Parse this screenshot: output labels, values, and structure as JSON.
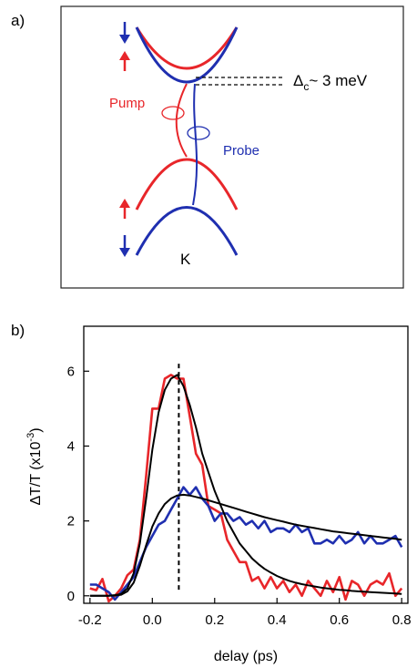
{
  "panel_a": {
    "label": "a)",
    "annotations": {
      "pump": "Pump",
      "probe": "Probe",
      "valley": "K",
      "gap_symbol": "Δ",
      "gap_subscript": "c",
      "gap_value": "~ 3 meV"
    },
    "colors": {
      "red": "#e8262a",
      "blue": "#1f2fb0"
    }
  },
  "chart_data": {
    "type": "line",
    "panel_label": "b)",
    "title": "",
    "xlabel": "delay (ps)",
    "ylabel": "ΔT/T (x10",
    "ylabel_exponent": "-3",
    "ylabel_close": ")",
    "xlim": [
      -0.22,
      0.82
    ],
    "ylim": [
      -0.2,
      7.2
    ],
    "xticks": [
      -0.2,
      0.0,
      0.2,
      0.4,
      0.6,
      0.8
    ],
    "xtick_labels": [
      "-0.2",
      "0.0",
      "0.2",
      "0.4",
      "0.6",
      "0.8"
    ],
    "yticks": [
      0,
      2,
      4,
      6
    ],
    "ytick_labels": [
      "0",
      "2",
      "4",
      "6"
    ],
    "vline_x": 0.085,
    "grid": false,
    "series": [
      {
        "color": "#e8262a",
        "x": [
          -0.2,
          -0.18,
          -0.16,
          -0.14,
          -0.12,
          -0.1,
          -0.08,
          -0.06,
          -0.04,
          -0.02,
          0.0,
          0.02,
          0.04,
          0.06,
          0.08,
          0.1,
          0.12,
          0.14,
          0.16,
          0.18,
          0.2,
          0.22,
          0.24,
          0.26,
          0.28,
          0.3,
          0.32,
          0.34,
          0.36,
          0.38,
          0.4,
          0.42,
          0.44,
          0.46,
          0.48,
          0.5,
          0.52,
          0.54,
          0.56,
          0.58,
          0.6,
          0.62,
          0.64,
          0.66,
          0.68,
          0.7,
          0.72,
          0.74,
          0.76,
          0.78,
          0.8
        ],
        "y": [
          0.2,
          0.15,
          0.45,
          -0.15,
          0.0,
          0.2,
          0.55,
          0.7,
          1.5,
          3.2,
          5.0,
          5.0,
          5.8,
          5.9,
          5.8,
          5.8,
          4.8,
          3.8,
          3.5,
          2.4,
          2.3,
          2.2,
          1.5,
          1.2,
          0.9,
          0.9,
          0.4,
          0.5,
          0.2,
          0.5,
          0.2,
          0.4,
          0.1,
          0.3,
          0.0,
          0.4,
          0.2,
          0.0,
          0.4,
          0.1,
          0.5,
          -0.1,
          0.4,
          0.3,
          0.0,
          0.3,
          0.4,
          0.3,
          0.6,
          0.0,
          0.2
        ]
      },
      {
        "color": "#1f2fb0",
        "x": [
          -0.2,
          -0.18,
          -0.16,
          -0.14,
          -0.12,
          -0.1,
          -0.08,
          -0.06,
          -0.04,
          -0.02,
          0.0,
          0.02,
          0.04,
          0.06,
          0.08,
          0.1,
          0.12,
          0.14,
          0.16,
          0.18,
          0.2,
          0.22,
          0.24,
          0.26,
          0.28,
          0.3,
          0.32,
          0.34,
          0.36,
          0.38,
          0.4,
          0.42,
          0.44,
          0.46,
          0.48,
          0.5,
          0.52,
          0.54,
          0.56,
          0.58,
          0.6,
          0.62,
          0.64,
          0.66,
          0.68,
          0.7,
          0.72,
          0.74,
          0.76,
          0.78,
          0.8
        ],
        "y": [
          0.3,
          0.3,
          0.2,
          0.1,
          -0.1,
          0.1,
          0.3,
          0.5,
          0.9,
          1.3,
          1.6,
          1.9,
          2.0,
          2.3,
          2.6,
          2.9,
          2.7,
          2.9,
          2.6,
          2.4,
          2.0,
          2.2,
          2.2,
          2.0,
          2.1,
          1.9,
          2.0,
          1.8,
          2.0,
          1.7,
          1.8,
          1.8,
          1.7,
          1.9,
          1.7,
          1.8,
          1.4,
          1.4,
          1.5,
          1.4,
          1.6,
          1.4,
          1.5,
          1.7,
          1.4,
          1.6,
          1.4,
          1.4,
          1.5,
          1.6,
          1.3
        ]
      },
      {
        "color": "#000000",
        "x": [
          -0.2,
          -0.18,
          -0.16,
          -0.14,
          -0.12,
          -0.1,
          -0.08,
          -0.06,
          -0.04,
          -0.02,
          0.0,
          0.02,
          0.04,
          0.06,
          0.08,
          0.1,
          0.12,
          0.14,
          0.16,
          0.18,
          0.2,
          0.22,
          0.24,
          0.26,
          0.28,
          0.3,
          0.32,
          0.34,
          0.36,
          0.38,
          0.4,
          0.42,
          0.44,
          0.46,
          0.48,
          0.5,
          0.52,
          0.54,
          0.56,
          0.58,
          0.6,
          0.62,
          0.64,
          0.66,
          0.68,
          0.7,
          0.72,
          0.74,
          0.76,
          0.78,
          0.8
        ],
        "y": [
          0.0,
          0.0,
          0.0,
          0.0,
          0.02,
          0.05,
          0.2,
          0.6,
          1.4,
          2.6,
          3.9,
          4.9,
          5.5,
          5.8,
          5.9,
          5.6,
          5.1,
          4.5,
          3.8,
          3.3,
          2.8,
          2.4,
          2.0,
          1.7,
          1.4,
          1.2,
          1.0,
          0.85,
          0.72,
          0.62,
          0.53,
          0.46,
          0.4,
          0.35,
          0.31,
          0.28,
          0.25,
          0.22,
          0.2,
          0.18,
          0.16,
          0.15,
          0.13,
          0.12,
          0.11,
          0.1,
          0.09,
          0.08,
          0.07,
          0.06,
          0.05
        ]
      },
      {
        "color": "#000000",
        "x": [
          -0.2,
          -0.18,
          -0.16,
          -0.14,
          -0.12,
          -0.1,
          -0.08,
          -0.06,
          -0.04,
          -0.02,
          0.0,
          0.02,
          0.04,
          0.06,
          0.08,
          0.1,
          0.12,
          0.14,
          0.16,
          0.18,
          0.2,
          0.22,
          0.24,
          0.26,
          0.28,
          0.3,
          0.32,
          0.34,
          0.36,
          0.38,
          0.4,
          0.42,
          0.44,
          0.46,
          0.48,
          0.5,
          0.52,
          0.54,
          0.56,
          0.58,
          0.6,
          0.62,
          0.64,
          0.66,
          0.68,
          0.7,
          0.72,
          0.74,
          0.76,
          0.78,
          0.8
        ],
        "y": [
          0.0,
          0.0,
          0.0,
          0.0,
          0.01,
          0.03,
          0.12,
          0.35,
          0.8,
          1.35,
          1.85,
          2.2,
          2.45,
          2.6,
          2.68,
          2.7,
          2.68,
          2.64,
          2.6,
          2.55,
          2.5,
          2.45,
          2.4,
          2.35,
          2.3,
          2.25,
          2.2,
          2.15,
          2.1,
          2.06,
          2.02,
          1.98,
          1.94,
          1.9,
          1.87,
          1.84,
          1.81,
          1.78,
          1.75,
          1.72,
          1.7,
          1.68,
          1.66,
          1.64,
          1.62,
          1.6,
          1.58,
          1.56,
          1.54,
          1.52,
          1.5
        ]
      }
    ]
  }
}
